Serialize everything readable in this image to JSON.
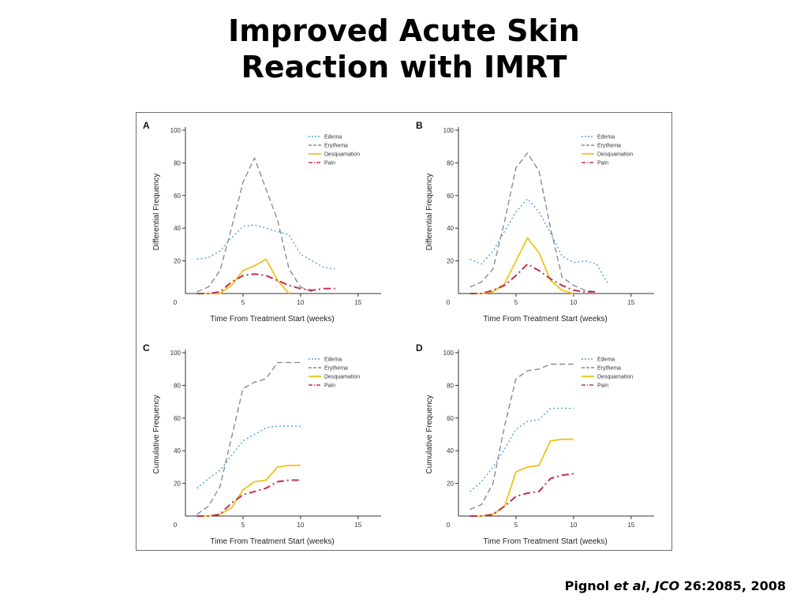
{
  "slide": {
    "title_line1": "Improved Acute Skin",
    "title_line2": "Reaction with IMRT",
    "citation": {
      "authors": "Pignol ",
      "etal": "et al",
      "sep": ", ",
      "journal": "JCO",
      "ref": " 26:2085, 2008"
    }
  },
  "colors": {
    "Edema": "#4aa3df",
    "Erythema": "#8c8c8c",
    "Desquamation": "#f2c21b",
    "Pain": "#c0304f"
  },
  "chart_data": [
    {
      "panel": "A",
      "type": "line",
      "xlabel": "Time From Treatment Start (weeks)",
      "ylabel": "Differential Frequency",
      "xlim": [
        0,
        17
      ],
      "ylim": [
        0,
        100
      ],
      "xticks": [
        "0",
        "5",
        "10",
        "15"
      ],
      "yticks": [
        "20",
        "40",
        "60",
        "80",
        "100"
      ],
      "legend": "top-right",
      "series": [
        {
          "name": "Edema",
          "style": "dotted",
          "x": [
            1,
            2,
            3,
            4,
            5,
            6,
            7,
            8,
            9,
            10,
            11,
            12,
            13
          ],
          "y": [
            21,
            22,
            26,
            34,
            41,
            42,
            40,
            38,
            36,
            24,
            20,
            16,
            15
          ]
        },
        {
          "name": "Erythema",
          "style": "dashed",
          "x": [
            1,
            2,
            3,
            4,
            5,
            6,
            7,
            8,
            9,
            10,
            11
          ],
          "y": [
            1,
            4,
            14,
            40,
            68,
            83,
            64,
            45,
            15,
            4,
            1
          ]
        },
        {
          "name": "Desquamation",
          "style": "solid",
          "x": [
            1,
            2,
            3,
            4,
            5,
            6,
            7,
            8,
            9
          ],
          "y": [
            0,
            0,
            0,
            5,
            14,
            17,
            21,
            8,
            0
          ]
        },
        {
          "name": "Pain",
          "style": "dashdot",
          "x": [
            1,
            2,
            3,
            4,
            5,
            6,
            7,
            8,
            9,
            10,
            11,
            12,
            13
          ],
          "y": [
            0,
            0,
            1,
            7,
            11,
            12,
            11,
            8,
            5,
            3,
            2,
            3,
            3
          ]
        }
      ]
    },
    {
      "panel": "B",
      "type": "line",
      "xlabel": "Time From Treatment Start (weeks)",
      "ylabel": "Differential Frequency",
      "xlim": [
        0,
        17
      ],
      "ylim": [
        0,
        100
      ],
      "xticks": [
        "0",
        "5",
        "10",
        "15"
      ],
      "yticks": [
        "20",
        "40",
        "60",
        "80",
        "100"
      ],
      "legend": "top-right",
      "series": [
        {
          "name": "Edema",
          "style": "dotted",
          "x": [
            1,
            2,
            3,
            4,
            5,
            6,
            7,
            8,
            9,
            10,
            11,
            12,
            13
          ],
          "y": [
            21,
            18,
            26,
            38,
            50,
            58,
            50,
            37,
            23,
            19,
            20,
            18,
            6
          ]
        },
        {
          "name": "Erythema",
          "style": "dashed",
          "x": [
            1,
            2,
            3,
            4,
            5,
            6,
            7,
            8,
            9,
            10,
            11,
            12
          ],
          "y": [
            4,
            7,
            15,
            44,
            77,
            86,
            75,
            40,
            10,
            5,
            2,
            1
          ]
        },
        {
          "name": "Desquamation",
          "style": "solid",
          "x": [
            1,
            2,
            3,
            4,
            5,
            6,
            7,
            8,
            9,
            10
          ],
          "y": [
            0,
            0,
            1,
            6,
            20,
            34,
            25,
            8,
            2,
            0
          ]
        },
        {
          "name": "Pain",
          "style": "dashdot",
          "x": [
            1,
            2,
            3,
            4,
            5,
            6,
            7,
            8,
            9,
            10,
            11,
            12
          ],
          "y": [
            0,
            0,
            2,
            5,
            11,
            18,
            14,
            9,
            5,
            2,
            1,
            1
          ]
        }
      ]
    },
    {
      "panel": "C",
      "type": "line",
      "xlabel": "Time From Treatment Start (weeks)",
      "ylabel": "Cumulative Frequency",
      "xlim": [
        0,
        17
      ],
      "ylim": [
        0,
        100
      ],
      "xticks": [
        "0",
        "5",
        "10",
        "15"
      ],
      "yticks": [
        "20",
        "40",
        "60",
        "80",
        "100"
      ],
      "legend": "top-right",
      "series": [
        {
          "name": "Edema",
          "style": "dotted",
          "x": [
            1,
            2,
            3,
            4,
            5,
            6,
            7,
            8,
            9,
            10
          ],
          "y": [
            17,
            23,
            28,
            37,
            46,
            50,
            54,
            55,
            55,
            55
          ]
        },
        {
          "name": "Erythema",
          "style": "dashed",
          "x": [
            1,
            2,
            3,
            4,
            5,
            6,
            7,
            8,
            9,
            10
          ],
          "y": [
            1,
            6,
            18,
            48,
            78,
            82,
            84,
            94,
            94,
            94
          ]
        },
        {
          "name": "Desquamation",
          "style": "solid",
          "x": [
            1,
            2,
            3,
            4,
            5,
            6,
            7,
            8,
            9,
            10
          ],
          "y": [
            0,
            0,
            1,
            5,
            16,
            21,
            22,
            30,
            31,
            31
          ]
        },
        {
          "name": "Pain",
          "style": "dashdot",
          "x": [
            1,
            2,
            3,
            4,
            5,
            6,
            7,
            8,
            9,
            10
          ],
          "y": [
            0,
            0,
            1,
            8,
            13,
            15,
            17,
            21,
            22,
            22
          ]
        }
      ]
    },
    {
      "panel": "D",
      "type": "line",
      "xlabel": "Time From Treatment Start (weeks)",
      "ylabel": "Cumulative Frequency",
      "xlim": [
        0,
        17
      ],
      "ylim": [
        0,
        100
      ],
      "xticks": [
        "0",
        "5",
        "10",
        "15"
      ],
      "yticks": [
        "20",
        "40",
        "60",
        "80",
        "100"
      ],
      "legend": "top-right",
      "series": [
        {
          "name": "Edema",
          "style": "dotted",
          "x": [
            1,
            2,
            3,
            4,
            5,
            6,
            7,
            8,
            9,
            10
          ],
          "y": [
            15,
            21,
            30,
            41,
            53,
            58,
            59,
            66,
            66,
            66
          ]
        },
        {
          "name": "Erythema",
          "style": "dashed",
          "x": [
            1,
            2,
            3,
            4,
            5,
            6,
            7,
            8,
            9,
            10
          ],
          "y": [
            4,
            7,
            20,
            55,
            84,
            89,
            90,
            93,
            93,
            93
          ]
        },
        {
          "name": "Desquamation",
          "style": "solid",
          "x": [
            1,
            2,
            3,
            4,
            5,
            6,
            7,
            8,
            9,
            10
          ],
          "y": [
            0,
            0,
            1,
            6,
            27,
            30,
            31,
            46,
            47,
            47
          ]
        },
        {
          "name": "Pain",
          "style": "dashdot",
          "x": [
            1,
            2,
            3,
            4,
            5,
            6,
            7,
            8,
            9,
            10
          ],
          "y": [
            0,
            0,
            1,
            6,
            12,
            14,
            15,
            23,
            25,
            26
          ]
        }
      ]
    }
  ]
}
